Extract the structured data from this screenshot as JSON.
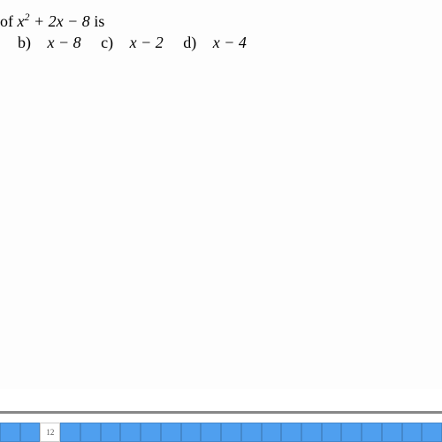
{
  "question": {
    "prefix_text": " of ",
    "expression_html": "x² + 2x − 8",
    "suffix_text": " is"
  },
  "options": [
    {
      "label": "b)",
      "text": "x − 8"
    },
    {
      "label": "c)",
      "text": "x − 2"
    },
    {
      "label": "d)",
      "text": "x − 4"
    }
  ],
  "ruler": {
    "total_cells": 22,
    "highlight_index": 2,
    "highlight_label": "12",
    "cell_color": "#4f9fef",
    "cell_border": "#4488cc",
    "divider_color": "#888888"
  }
}
